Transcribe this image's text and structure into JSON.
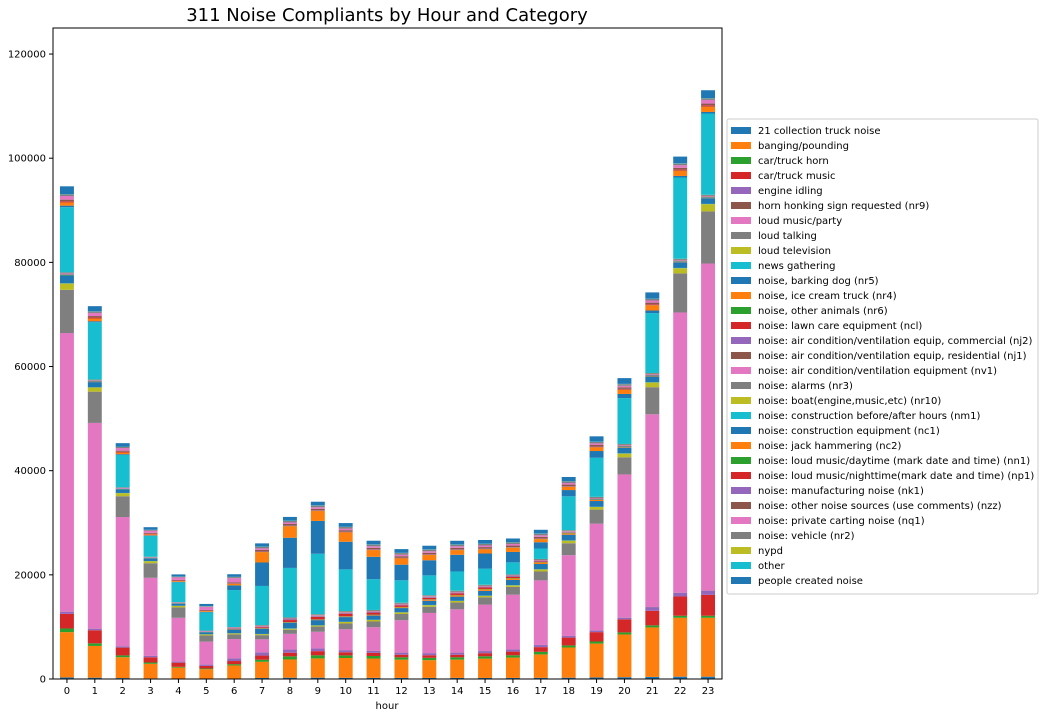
{
  "chart_data": {
    "type": "bar",
    "stacked": true,
    "title": "311 Noise Compliants by Hour and Category",
    "xlabel": "hour",
    "ylabel": "",
    "ylim": [
      0,
      125000
    ],
    "yticks": [
      0,
      20000,
      40000,
      60000,
      80000,
      100000,
      120000
    ],
    "ytick_labels": [
      "0",
      "20000",
      "40000",
      "60000",
      "80000",
      "100000",
      "120000"
    ],
    "categories": [
      "0",
      "1",
      "2",
      "3",
      "4",
      "5",
      "6",
      "7",
      "8",
      "9",
      "10",
      "11",
      "12",
      "13",
      "14",
      "15",
      "16",
      "17",
      "18",
      "19",
      "20",
      "21",
      "22",
      "23"
    ],
    "grid": false,
    "legend_position": "right, outside plot",
    "series": [
      {
        "name": "21 collection truck noise",
        "color": "#1f77b4",
        "values": [
          300,
          250,
          180,
          120,
          90,
          80,
          100,
          200,
          250,
          250,
          230,
          220,
          210,
          210,
          210,
          210,
          210,
          220,
          250,
          300,
          350,
          400,
          450,
          450
        ]
      },
      {
        "name": "banging/pounding",
        "color": "#ff7f0e",
        "values": [
          8700,
          6100,
          4000,
          2800,
          2100,
          1800,
          2500,
          3100,
          3500,
          3700,
          3800,
          3700,
          3500,
          3400,
          3500,
          3700,
          3900,
          4500,
          5800,
          6500,
          8200,
          9500,
          11300,
          11300
        ]
      },
      {
        "name": "car/truck horn",
        "color": "#2ca02c",
        "values": [
          700,
          500,
          350,
          250,
          150,
          130,
          250,
          400,
          600,
          600,
          500,
          500,
          450,
          450,
          450,
          450,
          450,
          500,
          400,
          400,
          400,
          400,
          400,
          400
        ]
      },
      {
        "name": "car/truck music",
        "color": "#d62728",
        "values": [
          2800,
          2500,
          1500,
          1000,
          800,
          500,
          600,
          800,
          700,
          800,
          600,
          600,
          500,
          500,
          500,
          600,
          700,
          900,
          1500,
          1800,
          2500,
          2800,
          3700,
          4000
        ]
      },
      {
        "name": "engine idling",
        "color": "#9467bd",
        "values": [
          400,
          300,
          250,
          250,
          200,
          250,
          500,
          600,
          600,
          500,
          400,
          400,
          400,
          400,
          400,
          400,
          400,
          400,
          300,
          300,
          300,
          700,
          700,
          800
        ]
      },
      {
        "name": "horn honking sign requested (nr9)",
        "color": "#8c564b",
        "values": [
          30,
          20,
          15,
          10,
          10,
          10,
          15,
          20,
          20,
          20,
          20,
          20,
          20,
          20,
          20,
          20,
          20,
          20,
          20,
          25,
          30,
          30,
          30,
          30
        ]
      },
      {
        "name": "loud music/party",
        "color": "#e377c2",
        "values": [
          53500,
          39500,
          24800,
          15000,
          8400,
          4400,
          3700,
          2500,
          3000,
          3200,
          4000,
          4500,
          6200,
          7700,
          8300,
          8900,
          10500,
          12400,
          15500,
          20500,
          27500,
          37000,
          53800,
          62800
        ]
      },
      {
        "name": "loud talking",
        "color": "#7f7f7f",
        "values": [
          8300,
          6000,
          4000,
          2800,
          2000,
          1200,
          900,
          800,
          800,
          1000,
          1100,
          1100,
          1200,
          1200,
          1300,
          1400,
          1500,
          1700,
          2300,
          2700,
          3300,
          5200,
          7500,
          10000
        ]
      },
      {
        "name": "loud television",
        "color": "#bcbd22",
        "values": [
          1200,
          800,
          600,
          400,
          300,
          200,
          200,
          200,
          200,
          200,
          300,
          300,
          300,
          300,
          300,
          300,
          300,
          400,
          500,
          500,
          700,
          900,
          1000,
          1400
        ]
      },
      {
        "name": "news gathering",
        "color": "#17becf",
        "values": [
          50,
          40,
          30,
          20,
          15,
          15,
          20,
          30,
          40,
          40,
          40,
          40,
          40,
          40,
          40,
          40,
          40,
          40,
          40,
          50,
          50,
          50,
          50,
          50
        ]
      },
      {
        "name": "noise, barking dog (nr5)",
        "color": "#1f77b4",
        "values": [
          1500,
          1000,
          700,
          500,
          400,
          400,
          700,
          1000,
          1100,
          1000,
          900,
          800,
          800,
          800,
          800,
          900,
          1000,
          1000,
          1100,
          1100,
          1100,
          1100,
          1100,
          1100
        ]
      },
      {
        "name": "noise, ice cream truck (nr4)",
        "color": "#ff7f0e",
        "values": [
          20,
          20,
          10,
          10,
          10,
          10,
          20,
          30,
          40,
          60,
          80,
          100,
          150,
          200,
          250,
          300,
          300,
          300,
          250,
          200,
          100,
          80,
          60,
          40
        ]
      },
      {
        "name": "noise, other animals (nr6)",
        "color": "#2ca02c",
        "values": [
          100,
          80,
          60,
          40,
          30,
          30,
          50,
          70,
          70,
          70,
          70,
          70,
          70,
          70,
          70,
          70,
          70,
          70,
          70,
          80,
          90,
          90,
          90,
          100
        ]
      },
      {
        "name": "noise:  lawn care equipment (ncl)",
        "color": "#d62728",
        "values": [
          10,
          10,
          10,
          10,
          10,
          20,
          100,
          200,
          400,
          500,
          500,
          400,
          300,
          300,
          300,
          300,
          200,
          100,
          50,
          20,
          10,
          10,
          10,
          10
        ]
      },
      {
        "name": "noise: air condition/ventilation equip, commercial (nj2)",
        "color": "#9467bd",
        "values": [
          100,
          80,
          70,
          60,
          60,
          60,
          80,
          100,
          120,
          120,
          120,
          120,
          120,
          120,
          120,
          120,
          120,
          120,
          110,
          110,
          110,
          110,
          110,
          110
        ]
      },
      {
        "name": "noise: air condition/ventilation equip, residential (nj1)",
        "color": "#8c564b",
        "values": [
          60,
          50,
          40,
          40,
          40,
          40,
          50,
          60,
          70,
          70,
          70,
          70,
          70,
          70,
          70,
          70,
          70,
          70,
          70,
          70,
          70,
          70,
          70,
          70
        ]
      },
      {
        "name": "noise: air condition/ventilation equipment (nv1)",
        "color": "#e377c2",
        "values": [
          100,
          80,
          70,
          60,
          60,
          60,
          80,
          100,
          100,
          100,
          100,
          100,
          100,
          100,
          100,
          100,
          100,
          100,
          100,
          100,
          100,
          100,
          100,
          100
        ]
      },
      {
        "name": "noise: alarms (nr3)",
        "color": "#7f7f7f",
        "values": [
          200,
          150,
          120,
          100,
          80,
          80,
          100,
          150,
          200,
          200,
          200,
          200,
          200,
          200,
          200,
          200,
          200,
          200,
          200,
          200,
          200,
          200,
          200,
          200
        ]
      },
      {
        "name": "noise: boat(engine,music,etc) (nr10)",
        "color": "#bcbd22",
        "values": [
          20,
          20,
          10,
          10,
          10,
          10,
          10,
          10,
          20,
          20,
          20,
          20,
          20,
          20,
          20,
          20,
          20,
          20,
          20,
          20,
          20,
          20,
          20,
          20
        ]
      },
      {
        "name": "noise: construction before/after hours (nm1)",
        "color": "#17becf",
        "values": [
          12500,
          11000,
          6200,
          4000,
          3800,
          3500,
          7100,
          7500,
          9500,
          11600,
          8000,
          5900,
          4300,
          3800,
          3700,
          3100,
          2300,
          2000,
          6500,
          7500,
          8800,
          11500,
          15600,
          15600
        ]
      },
      {
        "name": "noise: construction equipment (nc1)",
        "color": "#1f77b4",
        "values": [
          300,
          200,
          150,
          100,
          80,
          100,
          900,
          4500,
          5800,
          6300,
          5300,
          4300,
          3000,
          2900,
          3200,
          2900,
          2000,
          1200,
          1200,
          1300,
          800,
          500,
          300,
          300
        ]
      },
      {
        "name": "noise: jack hammering (nc2)",
        "color": "#ff7f0e",
        "values": [
          600,
          500,
          300,
          200,
          150,
          150,
          300,
          2000,
          2200,
          1900,
          1800,
          1300,
          1200,
          1000,
          900,
          800,
          800,
          600,
          600,
          700,
          800,
          1000,
          1000,
          1000
        ]
      },
      {
        "name": "noise: loud music/daytime (mark date and time) (nn1)",
        "color": "#2ca02c",
        "values": [
          20,
          20,
          10,
          10,
          10,
          10,
          10,
          20,
          30,
          30,
          30,
          30,
          30,
          30,
          30,
          30,
          30,
          30,
          30,
          30,
          30,
          30,
          30,
          30
        ]
      },
      {
        "name": "noise: loud music/nighttime(mark date and time) (np1)",
        "color": "#d62728",
        "values": [
          200,
          200,
          150,
          100,
          80,
          60,
          50,
          50,
          50,
          50,
          50,
          50,
          50,
          50,
          50,
          50,
          50,
          60,
          80,
          100,
          120,
          150,
          200,
          250
        ]
      },
      {
        "name": "noise: manufacturing noise (nk1)",
        "color": "#9467bd",
        "values": [
          30,
          20,
          20,
          20,
          20,
          20,
          30,
          40,
          50,
          50,
          50,
          50,
          50,
          50,
          50,
          50,
          40,
          40,
          40,
          30,
          30,
          30,
          30,
          30
        ]
      },
      {
        "name": "noise: other noise sources (use comments) (nzz)",
        "color": "#8c564b",
        "values": [
          300,
          250,
          200,
          150,
          120,
          120,
          200,
          300,
          300,
          300,
          300,
          300,
          300,
          300,
          300,
          300,
          300,
          300,
          300,
          300,
          300,
          300,
          300,
          300
        ]
      },
      {
        "name": "noise: private carting noise (nq1)",
        "color": "#e377c2",
        "values": [
          700,
          600,
          500,
          400,
          500,
          600,
          800,
          300,
          300,
          300,
          300,
          300,
          300,
          300,
          300,
          300,
          300,
          300,
          300,
          300,
          300,
          400,
          500,
          700
        ]
      },
      {
        "name": "noise: vehicle (nr2)",
        "color": "#7f7f7f",
        "values": [
          300,
          250,
          200,
          150,
          120,
          120,
          200,
          300,
          300,
          300,
          300,
          300,
          300,
          300,
          300,
          300,
          300,
          300,
          300,
          300,
          300,
          300,
          300,
          300
        ]
      },
      {
        "name": "nypd",
        "color": "#bcbd22",
        "values": [
          10,
          10,
          10,
          10,
          10,
          10,
          10,
          10,
          10,
          10,
          10,
          10,
          10,
          10,
          10,
          10,
          10,
          10,
          10,
          10,
          10,
          10,
          10,
          10
        ]
      },
      {
        "name": "other",
        "color": "#17becf",
        "values": [
          50,
          40,
          30,
          30,
          30,
          30,
          40,
          50,
          50,
          50,
          50,
          50,
          50,
          50,
          50,
          50,
          50,
          50,
          50,
          50,
          50,
          50,
          50,
          50
        ]
      },
      {
        "name": "people created noise",
        "color": "#1f77b4",
        "values": [
          1500,
          1000,
          700,
          500,
          400,
          400,
          500,
          600,
          700,
          700,
          700,
          700,
          700,
          700,
          700,
          700,
          700,
          700,
          800,
          1000,
          1100,
          1200,
          1300,
          1500
        ]
      }
    ]
  }
}
